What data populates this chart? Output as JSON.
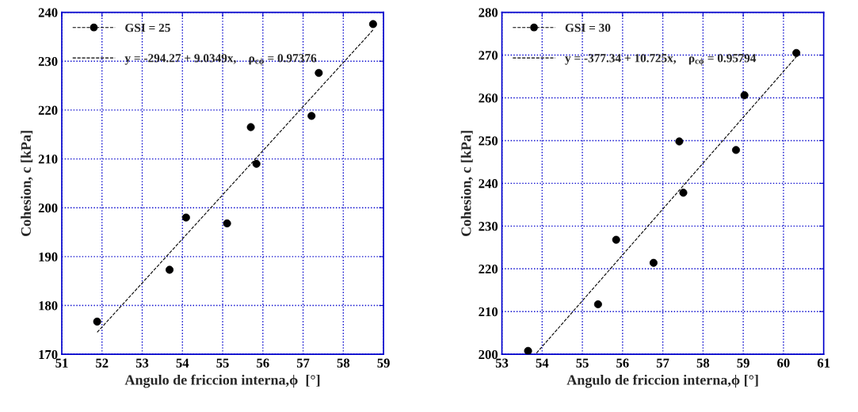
{
  "chart_data": [
    {
      "type": "scatter",
      "xlabel": "Angulo de friccion interna,ϕ  [°]",
      "ylabel": "Cohesion, c [kPa]",
      "xlim": [
        51,
        59
      ],
      "ylim": [
        170,
        240
      ],
      "xticks": [
        51,
        52,
        53,
        54,
        55,
        56,
        57,
        58,
        59
      ],
      "yticks": [
        170,
        180,
        190,
        200,
        210,
        220,
        230,
        240
      ],
      "grid": true,
      "legend": "top left",
      "marker": "circle",
      "series": [
        {
          "name": "GSI = 25",
          "color": "#000000",
          "x": [
            51.88,
            53.68,
            54.09,
            55.11,
            55.7,
            55.84,
            57.21,
            57.39,
            58.74
          ],
          "values": [
            176.7,
            187.3,
            198.0,
            196.8,
            216.5,
            209.0,
            218.8,
            227.6,
            237.6
          ]
        },
        {
          "type": "line",
          "name": "y = -294.27 + 9.0349x,    ρ$_{cϕ}$ = 0.97376",
          "color": "#000000",
          "line_style": "dashed",
          "marker": "none",
          "x": [
            51.88,
            58.74
          ],
          "values": [
            174.5,
            236.4
          ]
        }
      ]
    },
    {
      "type": "scatter",
      "xlabel": "Angulo de friccion interna,ϕ [°]",
      "ylabel": "Cohesion, c [kPa]",
      "xlim": [
        53,
        61
      ],
      "ylim": [
        200,
        280
      ],
      "xticks": [
        53,
        54,
        55,
        56,
        57,
        58,
        59,
        60,
        61
      ],
      "yticks": [
        200,
        210,
        220,
        230,
        240,
        250,
        260,
        270,
        280
      ],
      "grid": true,
      "legend": "top left",
      "marker": "circle",
      "series": [
        {
          "name": "GSI = 30",
          "color": "#000000",
          "x": [
            53.65,
            55.39,
            55.84,
            56.77,
            57.41,
            57.51,
            58.82,
            59.03,
            60.32
          ],
          "values": [
            200.8,
            211.7,
            226.8,
            221.4,
            249.8,
            237.8,
            247.8,
            260.6,
            270.5
          ]
        },
        {
          "type": "line",
          "name": "y = -377.34 + 10.725x,    ρ$_{cϕ}$ = 0.95794",
          "color": "#000000",
          "line_style": "dashed",
          "marker": "none",
          "x": [
            53.86,
            60.32
          ],
          "values": [
            200.3,
            269.6
          ]
        }
      ]
    }
  ]
}
